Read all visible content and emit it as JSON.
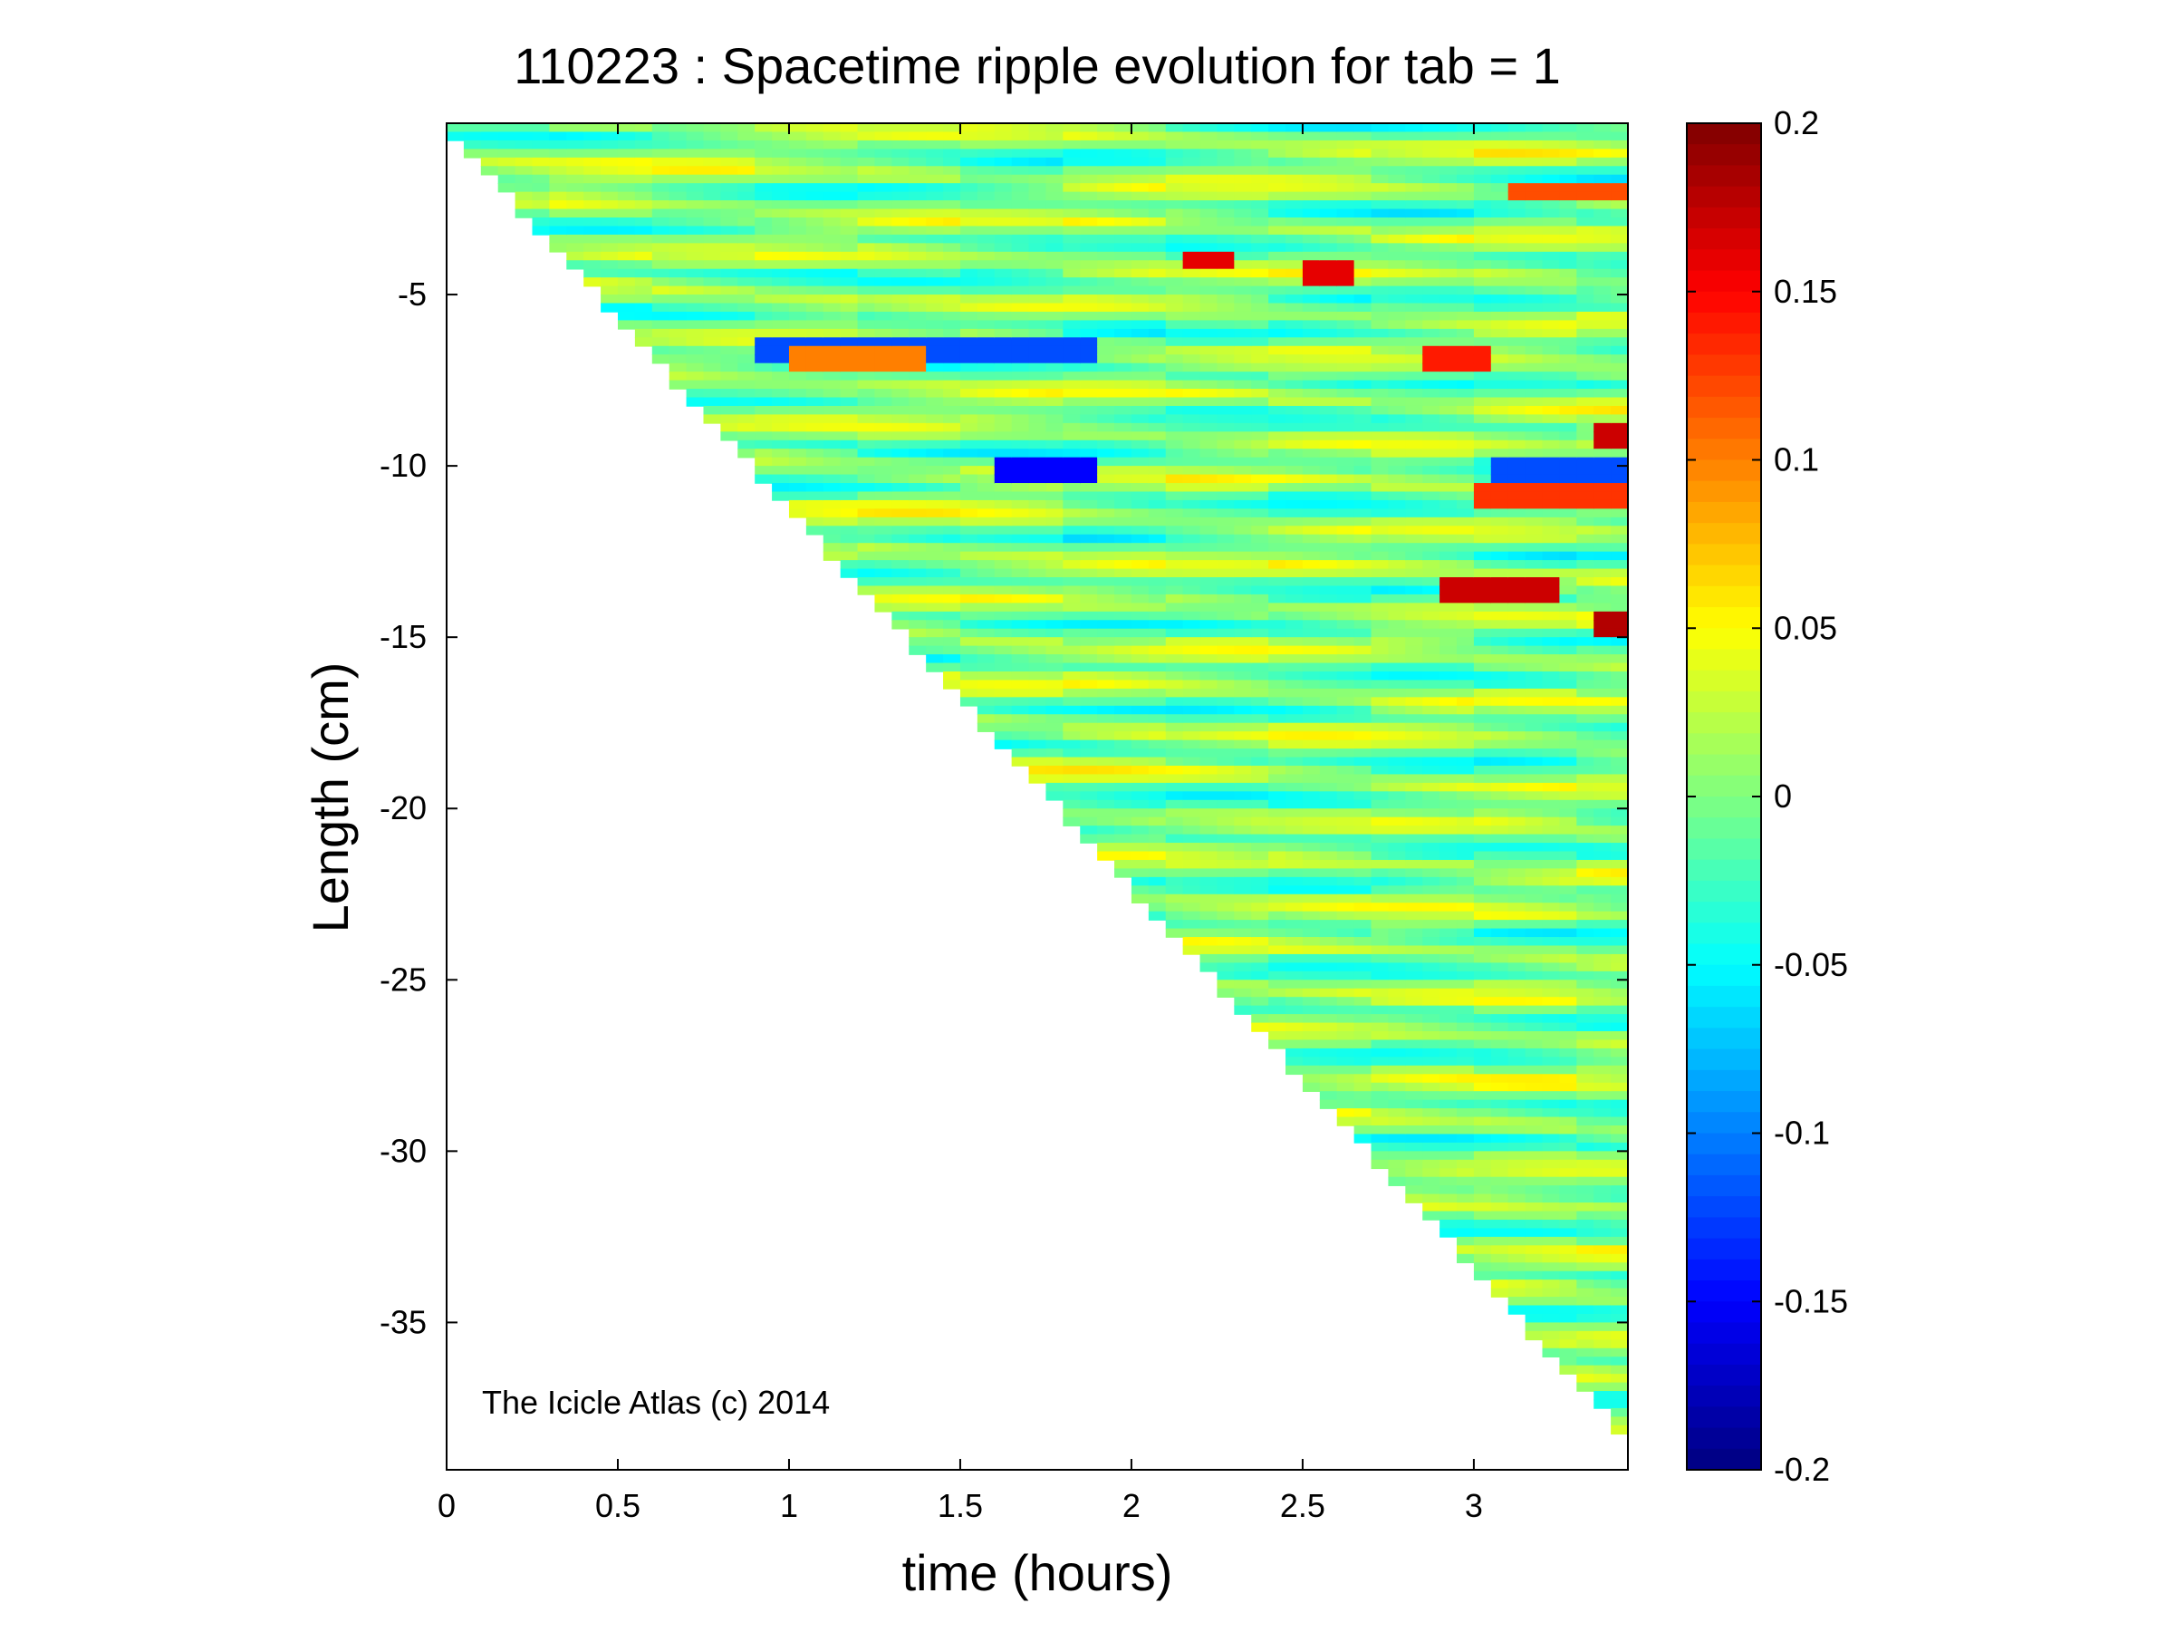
{
  "chart_data": {
    "type": "heatmap",
    "title": "110223 : Spacetime ripple evolution for tab = 1",
    "xlabel": "time (hours)",
    "ylabel": "Length (cm)",
    "xlim": [
      0,
      3.45
    ],
    "ylim": [
      -39.3,
      0
    ],
    "xticks": [
      0,
      0.5,
      1,
      1.5,
      2,
      2.5,
      3
    ],
    "xtick_labels": [
      "0",
      "0.5",
      "1",
      "1.5",
      "2",
      "2.5",
      "3"
    ],
    "yticks": [
      -5,
      -10,
      -15,
      -20,
      -25,
      -30,
      -35
    ],
    "ytick_labels": [
      "-5",
      "-10",
      "-15",
      "-20",
      "-25",
      "-30",
      "-35"
    ],
    "colormap": "jet",
    "clim": [
      -0.2,
      0.2
    ],
    "colorbar_ticks": [
      0.2,
      0.15,
      0.1,
      0.05,
      0,
      -0.05,
      -0.1,
      -0.15,
      -0.2
    ],
    "colorbar_tick_labels": [
      "0.2",
      "0.15",
      "0.1",
      "0.05",
      "0",
      "-0.05",
      "-0.1",
      "-0.15",
      "-0.2"
    ],
    "grid": false,
    "data_region": "upper-right triangle: data exists where Length >= -11.1 * time (icicle grows ~11 cm/hour, reaching about -38 cm at 3.45 h)",
    "notable_features": [
      {
        "time": [
          0.9,
          1.9
        ],
        "length": -6.5,
        "value": -0.12
      },
      {
        "time": [
          1.0,
          1.4
        ],
        "length": -6.8,
        "value": 0.1
      },
      {
        "time": [
          1.6,
          1.9
        ],
        "length": -10.0,
        "value": -0.15
      },
      {
        "time": [
          2.15,
          2.25
        ],
        "length": -3.9,
        "value": 0.16
      },
      {
        "time": [
          2.5,
          2.65
        ],
        "length": -4.2,
        "value": 0.16
      },
      {
        "time": [
          2.85,
          3.0
        ],
        "length": -6.7,
        "value": 0.14
      },
      {
        "time": [
          3.0,
          3.45
        ],
        "length": -10.7,
        "value": 0.13
      },
      {
        "time": [
          3.05,
          3.45
        ],
        "length": -10.1,
        "value": -0.12
      },
      {
        "time": [
          2.9,
          3.2
        ],
        "length": -13.4,
        "value": 0.17
      },
      {
        "time": [
          3.35,
          3.45
        ],
        "length": -14.6,
        "value": 0.18
      },
      {
        "time": [
          3.35,
          3.45
        ],
        "length": -9.0,
        "value": 0.17
      },
      {
        "time": [
          3.1,
          3.45
        ],
        "length": -1.9,
        "value": 0.12
      }
    ],
    "annotations": [
      "The Icicle Atlas (c) 2014"
    ]
  }
}
